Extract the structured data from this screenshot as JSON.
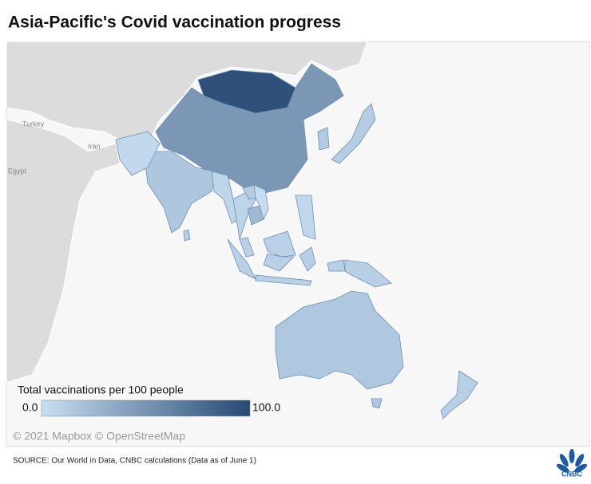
{
  "title": "Asia-Pacific's Covid vaccination progress",
  "map": {
    "place_labels": [
      "Turkey",
      "Iran",
      "Egypt"
    ],
    "regions": [
      {
        "value": 95
      },
      {
        "value": 48
      },
      {
        "value": 13
      },
      {
        "value": 12
      },
      {
        "value": 16
      },
      {
        "value": 4
      },
      {
        "value": 11
      },
      {
        "value": 6
      },
      {
        "value": 7
      },
      {
        "value": 25
      },
      {
        "value": 9
      },
      {
        "value": 10
      },
      {
        "value": 10
      },
      {
        "value": 12
      },
      {
        "value": 5
      },
      {
        "value": 1
      },
      {
        "value": 15
      },
      {
        "value": 10
      }
    ],
    "legend": {
      "title": "Total vaccinations per 100 people",
      "ticks": [
        {
          "value": 0,
          "label": "0.0"
        },
        {
          "value": 100,
          "label": "100.0"
        }
      ],
      "colors": [
        "#c8def2",
        "#274a73"
      ]
    },
    "attribution": "© 2021 Mapbox © OpenStreetMap"
  },
  "footer": {
    "source": "SOURCE: Our World in Data, CNBC calculations (Data as of June 1)",
    "logo": "CNBC"
  }
}
